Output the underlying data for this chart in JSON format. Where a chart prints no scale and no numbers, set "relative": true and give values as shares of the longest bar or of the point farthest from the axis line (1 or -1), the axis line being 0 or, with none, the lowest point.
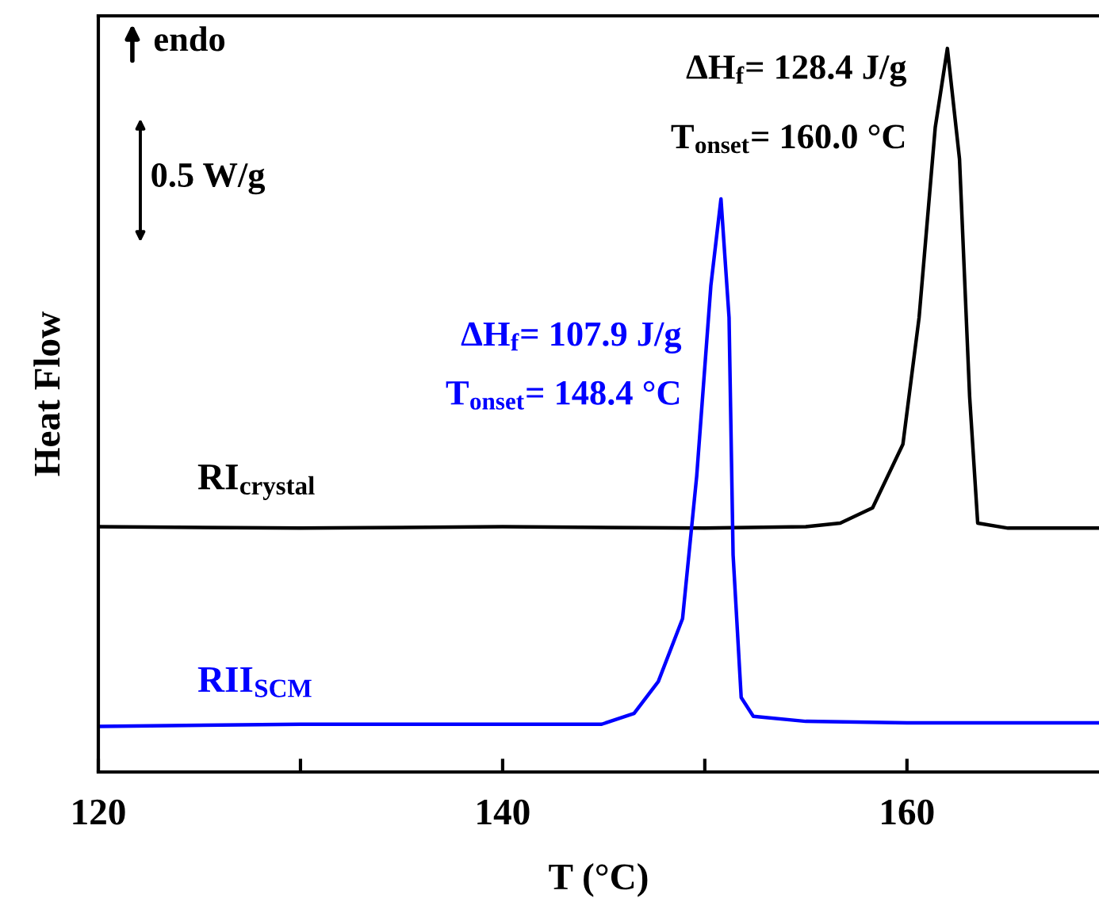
{
  "chart_data": {
    "type": "line",
    "relative": true,
    "xlabel": "T (°C)",
    "ylabel": "Heat Flow",
    "xlim": [
      120,
      169.5
    ],
    "xticks": [
      120,
      {
        "value": 130,
        "label": null
      },
      140,
      {
        "value": 150,
        "label": null
      },
      160
    ],
    "tick_labels": "x",
    "grid": false,
    "legend": false,
    "marker": "none",
    "line_style": "solid",
    "series": [
      {
        "name": "RI$_{crystal}$",
        "color": "#000000",
        "x": [
          120,
          130,
          140,
          150,
          155,
          156.7,
          158.3,
          159.8,
          160.6,
          161.4,
          162.0,
          162.6,
          163.1,
          163.5,
          165,
          169.5
        ],
        "values": [
          0.339,
          0.337,
          0.339,
          0.337,
          0.339,
          0.344,
          0.365,
          0.453,
          0.628,
          0.891,
          1,
          0.847,
          0.519,
          0.344,
          0.337,
          0.337
        ]
      },
      {
        "name": "RII$_{SCM}$",
        "color": "#0000ff",
        "x": [
          120,
          130,
          140,
          144.9,
          146.5,
          147.7,
          148.9,
          149.6,
          150.3,
          150.8,
          151.2,
          151.4,
          151.8,
          152.4,
          155,
          160,
          169.5
        ],
        "values": [
          0.063,
          0.066,
          0.066,
          0.066,
          0.081,
          0.125,
          0.212,
          0.409,
          0.672,
          0.792,
          0.628,
          0.3,
          0.103,
          0.077,
          0.07,
          0.068,
          0.068
        ]
      }
    ],
    "annotations": [
      "endo",
      "0.5 W/g",
      "ΔH$_{f}$= 128.4 J/g",
      "T$_{onset}$= 160.0 °C",
      "ΔH$_{f}$= 107.9 J/g",
      "T$_{onset}$= 148.4 °C"
    ]
  }
}
